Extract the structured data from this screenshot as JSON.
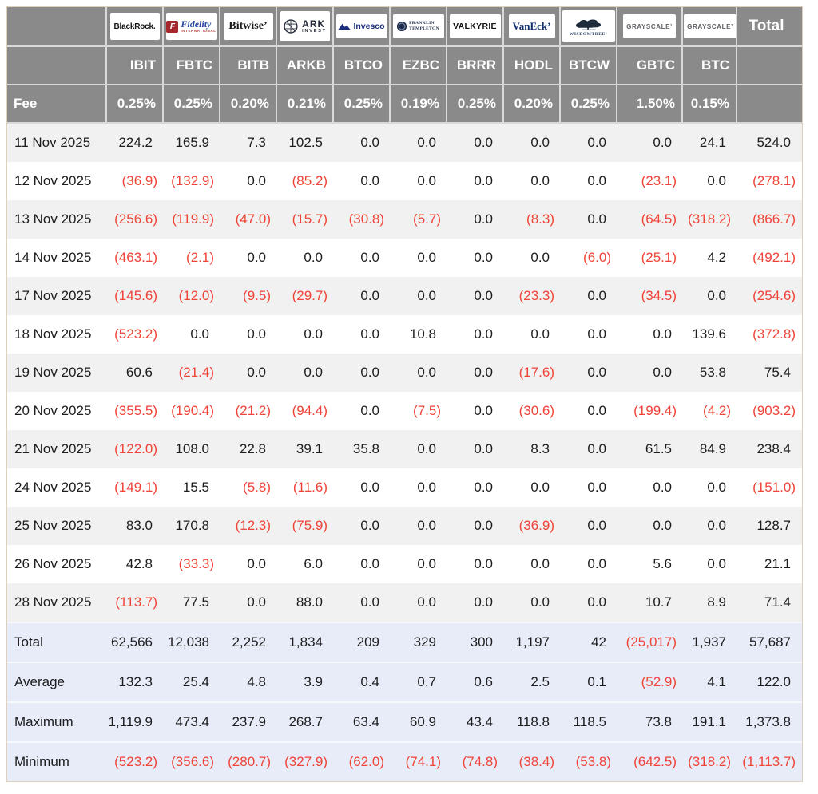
{
  "header": {
    "fee_label": "Fee",
    "total_label": "Total",
    "providers": [
      {
        "id": "ibit",
        "ticker": "IBIT",
        "fee": "0.25%",
        "logo": {
          "type": "blackrock",
          "text": "BlackRock."
        }
      },
      {
        "id": "fbtc",
        "ticker": "FBTC",
        "fee": "0.25%",
        "logo": {
          "type": "fidelity",
          "mark": "F",
          "text": "Fidelity",
          "sub": "INTERNATIONAL"
        }
      },
      {
        "id": "bitb",
        "ticker": "BITB",
        "fee": "0.20%",
        "logo": {
          "type": "bitwise",
          "text": "Bitwise’"
        }
      },
      {
        "id": "arkb",
        "ticker": "ARKB",
        "fee": "0.21%",
        "logo": {
          "type": "ark",
          "text": "ARK",
          "sub": "INVEST"
        }
      },
      {
        "id": "btco",
        "ticker": "BTCO",
        "fee": "0.25%",
        "logo": {
          "type": "invesco",
          "text": "Invesco"
        }
      },
      {
        "id": "ezbc",
        "ticker": "EZBC",
        "fee": "0.19%",
        "logo": {
          "type": "franklin",
          "text": "FRANKLIN",
          "sub": "TEMPLETON"
        }
      },
      {
        "id": "brrr",
        "ticker": "BRRR",
        "fee": "0.25%",
        "logo": {
          "type": "valkyrie",
          "text": "VALKYRIE"
        }
      },
      {
        "id": "hodl",
        "ticker": "HODL",
        "fee": "0.20%",
        "logo": {
          "type": "vaneck",
          "text": "VanEck’"
        }
      },
      {
        "id": "btcw",
        "ticker": "BTCW",
        "fee": "0.25%",
        "logo": {
          "type": "wisdomtree",
          "text": "WISDOMTREE’"
        }
      },
      {
        "id": "gbtc",
        "ticker": "GBTC",
        "fee": "1.50%",
        "logo": {
          "type": "grayscale",
          "text": "GRAYSCALE’"
        }
      },
      {
        "id": "btc",
        "ticker": "BTC",
        "fee": "0.15%",
        "logo": {
          "type": "grayscale",
          "text": "GRAYSCALE’"
        }
      }
    ]
  },
  "chart_data": {
    "type": "table",
    "columns": [
      "IBIT",
      "FBTC",
      "BITB",
      "ARKB",
      "BTCO",
      "EZBC",
      "BRRR",
      "HODL",
      "BTCW",
      "GBTC",
      "BTC",
      "Total"
    ],
    "fees": [
      "0.25%",
      "0.25%",
      "0.20%",
      "0.21%",
      "0.25%",
      "0.19%",
      "0.25%",
      "0.20%",
      "0.25%",
      "1.50%",
      "0.15%"
    ],
    "rows": [
      {
        "label": "11 Nov 2025",
        "values": [
          "224.2",
          "165.9",
          "7.3",
          "102.5",
          "0.0",
          "0.0",
          "0.0",
          "0.0",
          "0.0",
          "0.0",
          "24.1",
          "524.0"
        ]
      },
      {
        "label": "12 Nov 2025",
        "values": [
          "(36.9)",
          "(132.9)",
          "0.0",
          "(85.2)",
          "0.0",
          "0.0",
          "0.0",
          "0.0",
          "0.0",
          "(23.1)",
          "0.0",
          "(278.1)"
        ]
      },
      {
        "label": "13 Nov 2025",
        "values": [
          "(256.6)",
          "(119.9)",
          "(47.0)",
          "(15.7)",
          "(30.8)",
          "(5.7)",
          "0.0",
          "(8.3)",
          "0.0",
          "(64.5)",
          "(318.2)",
          "(866.7)"
        ]
      },
      {
        "label": "14 Nov 2025",
        "values": [
          "(463.1)",
          "(2.1)",
          "0.0",
          "0.0",
          "0.0",
          "0.0",
          "0.0",
          "0.0",
          "(6.0)",
          "(25.1)",
          "4.2",
          "(492.1)"
        ]
      },
      {
        "label": "17 Nov 2025",
        "values": [
          "(145.6)",
          "(12.0)",
          "(9.5)",
          "(29.7)",
          "0.0",
          "0.0",
          "0.0",
          "(23.3)",
          "0.0",
          "(34.5)",
          "0.0",
          "(254.6)"
        ]
      },
      {
        "label": "18 Nov 2025",
        "values": [
          "(523.2)",
          "0.0",
          "0.0",
          "0.0",
          "0.0",
          "10.8",
          "0.0",
          "0.0",
          "0.0",
          "0.0",
          "139.6",
          "(372.8)"
        ]
      },
      {
        "label": "19 Nov 2025",
        "values": [
          "60.6",
          "(21.4)",
          "0.0",
          "0.0",
          "0.0",
          "0.0",
          "0.0",
          "(17.6)",
          "0.0",
          "0.0",
          "53.8",
          "75.4"
        ]
      },
      {
        "label": "20 Nov 2025",
        "values": [
          "(355.5)",
          "(190.4)",
          "(21.2)",
          "(94.4)",
          "0.0",
          "(7.5)",
          "0.0",
          "(30.6)",
          "0.0",
          "(199.4)",
          "(4.2)",
          "(903.2)"
        ]
      },
      {
        "label": "21 Nov 2025",
        "values": [
          "(122.0)",
          "108.0",
          "22.8",
          "39.1",
          "35.8",
          "0.0",
          "0.0",
          "8.3",
          "0.0",
          "61.5",
          "84.9",
          "238.4"
        ]
      },
      {
        "label": "24 Nov 2025",
        "values": [
          "(149.1)",
          "15.5",
          "(5.8)",
          "(11.6)",
          "0.0",
          "0.0",
          "0.0",
          "0.0",
          "0.0",
          "0.0",
          "0.0",
          "(151.0)"
        ]
      },
      {
        "label": "25 Nov 2025",
        "values": [
          "83.0",
          "170.8",
          "(12.3)",
          "(75.9)",
          "0.0",
          "0.0",
          "0.0",
          "(36.9)",
          "0.0",
          "0.0",
          "0.0",
          "128.7"
        ]
      },
      {
        "label": "26 Nov 2025",
        "values": [
          "42.8",
          "(33.3)",
          "0.0",
          "6.0",
          "0.0",
          "0.0",
          "0.0",
          "0.0",
          "0.0",
          "5.6",
          "0.0",
          "21.1"
        ]
      },
      {
        "label": "28 Nov 2025",
        "values": [
          "(113.7)",
          "77.5",
          "0.0",
          "88.0",
          "0.0",
          "0.0",
          "0.0",
          "0.0",
          "0.0",
          "10.7",
          "8.9",
          "71.4"
        ]
      }
    ],
    "summary": [
      {
        "label": "Total",
        "values": [
          "62,566",
          "12,038",
          "2,252",
          "1,834",
          "209",
          "329",
          "300",
          "1,197",
          "42",
          "(25,017)",
          "1,937",
          "57,687"
        ]
      },
      {
        "label": "Average",
        "values": [
          "132.3",
          "25.4",
          "4.8",
          "3.9",
          "0.4",
          "0.7",
          "0.6",
          "2.5",
          "0.1",
          "(52.9)",
          "4.1",
          "122.0"
        ]
      },
      {
        "label": "Maximum",
        "values": [
          "1,119.9",
          "473.4",
          "237.9",
          "268.7",
          "63.4",
          "60.9",
          "43.4",
          "118.8",
          "118.5",
          "73.8",
          "191.1",
          "1,373.8"
        ]
      },
      {
        "label": "Minimum",
        "values": [
          "(523.2)",
          "(356.6)",
          "(280.7)",
          "(327.9)",
          "(62.0)",
          "(74.1)",
          "(74.8)",
          "(38.4)",
          "(53.8)",
          "(642.5)",
          "(318.2)",
          "(1,113.7)"
        ]
      }
    ]
  },
  "colors": {
    "negative": "#ef4438",
    "header_bg": "#8a8a8a",
    "summary_bg": "#e8ecf8",
    "row_alt": "#f1f1f2",
    "outer_border": "#ddd0bc"
  }
}
